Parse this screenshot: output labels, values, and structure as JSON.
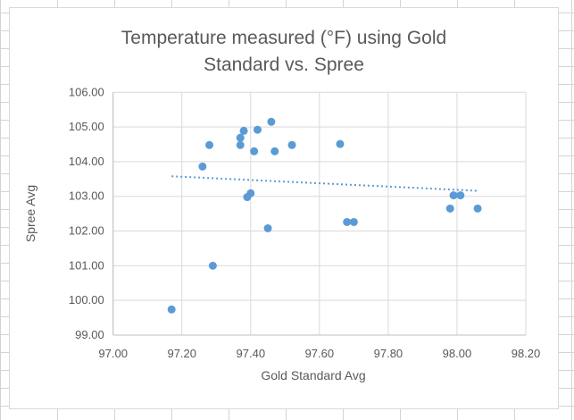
{
  "chart_data": {
    "type": "scatter",
    "title_lines": [
      "Temperature measured (°F) using Gold",
      "Standard vs. Spree"
    ],
    "xlabel": "Gold Standard Avg",
    "ylabel": "Spree Avg",
    "xlim": [
      97.0,
      98.2
    ],
    "ylim": [
      99.0,
      106.0
    ],
    "xticks": [
      "97.00",
      "97.20",
      "97.40",
      "97.60",
      "97.80",
      "98.00",
      "98.20"
    ],
    "yticks": [
      "99.00",
      "100.00",
      "101.00",
      "102.00",
      "103.00",
      "104.00",
      "105.00",
      "106.00"
    ],
    "grid": true,
    "trendline": "linear, dotted",
    "marker_color": "#5b9bd5",
    "points": [
      [
        97.17,
        99.74
      ],
      [
        97.29,
        101.0
      ],
      [
        97.26,
        103.86
      ],
      [
        97.28,
        104.48
      ],
      [
        97.37,
        104.69
      ],
      [
        97.37,
        104.48
      ],
      [
        97.38,
        104.89
      ],
      [
        97.42,
        104.92
      ],
      [
        97.46,
        105.15
      ],
      [
        97.41,
        104.3
      ],
      [
        97.47,
        104.3
      ],
      [
        97.52,
        104.48
      ],
      [
        97.39,
        102.98
      ],
      [
        97.4,
        103.09
      ],
      [
        97.45,
        102.08
      ],
      [
        97.66,
        104.51
      ],
      [
        97.68,
        102.26
      ],
      [
        97.7,
        102.26
      ],
      [
        97.98,
        102.65
      ],
      [
        97.99,
        103.03
      ],
      [
        98.01,
        103.03
      ],
      [
        98.06,
        102.65
      ]
    ],
    "trend_endpoints": [
      [
        97.17,
        103.58
      ],
      [
        98.06,
        103.16
      ]
    ]
  }
}
